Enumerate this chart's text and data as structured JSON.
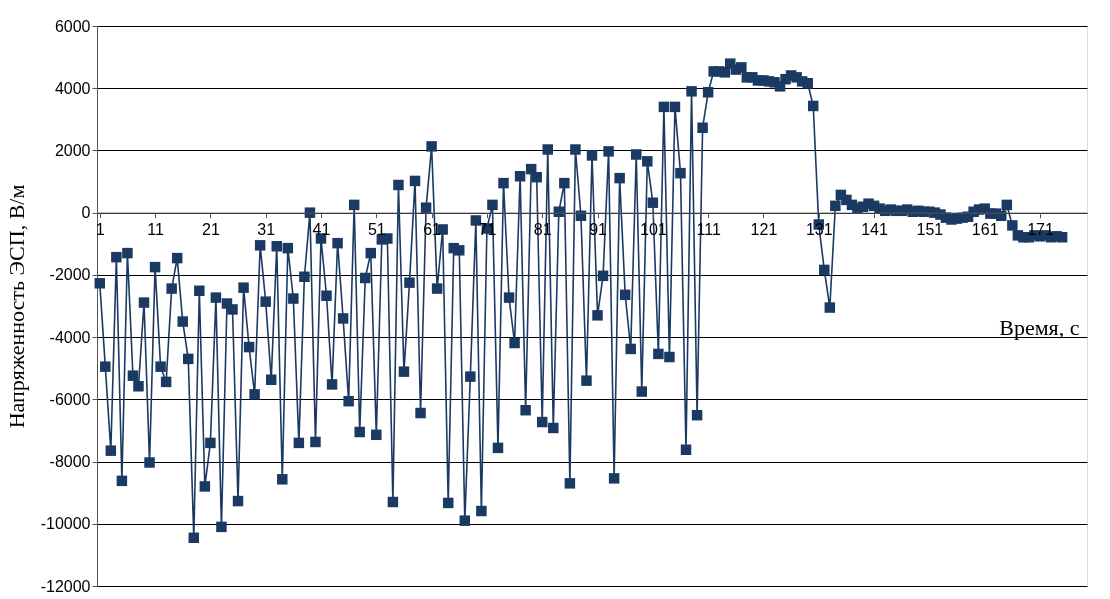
{
  "chart_data": {
    "type": "line",
    "xlabel": "Время, с",
    "ylabel": "Напряженность  ЭСП, В/м",
    "x": [
      1,
      2,
      3,
      4,
      5,
      6,
      7,
      8,
      9,
      10,
      11,
      12,
      13,
      14,
      15,
      16,
      17,
      18,
      19,
      20,
      21,
      22,
      23,
      24,
      25,
      26,
      27,
      28,
      29,
      30,
      31,
      32,
      33,
      34,
      35,
      36,
      37,
      38,
      39,
      40,
      41,
      42,
      43,
      44,
      45,
      46,
      47,
      48,
      49,
      50,
      51,
      52,
      53,
      54,
      55,
      56,
      57,
      58,
      59,
      60,
      61,
      62,
      63,
      64,
      65,
      66,
      67,
      68,
      69,
      70,
      71,
      72,
      73,
      74,
      75,
      76,
      77,
      78,
      79,
      80,
      81,
      82,
      83,
      84,
      85,
      86,
      87,
      88,
      89,
      90,
      91,
      92,
      93,
      94,
      95,
      96,
      97,
      98,
      99,
      100,
      101,
      102,
      103,
      104,
      105,
      106,
      107,
      108,
      109,
      110,
      111,
      112,
      113,
      114,
      115,
      116,
      117,
      118,
      119,
      120,
      121,
      122,
      123,
      124,
      125,
      126,
      127,
      128,
      129,
      130,
      131,
      132,
      133,
      134,
      135,
      136,
      137,
      138,
      139,
      140,
      141,
      142,
      143,
      144,
      145,
      146,
      147,
      148,
      149,
      150,
      151,
      152,
      153,
      154,
      155,
      156,
      157,
      158,
      159,
      160,
      161,
      162,
      163,
      164,
      165,
      166,
      167,
      168,
      169,
      170,
      171,
      172,
      173,
      174,
      175
    ],
    "series": [
      {
        "color": "#1b3a63",
        "values": [
          -2270,
          -4950,
          -7650,
          -1430,
          -8620,
          -1300,
          -5240,
          -5580,
          -2890,
          -8030,
          -1750,
          -4950,
          -5440,
          -2440,
          -1460,
          -3500,
          -4700,
          -10450,
          -2510,
          -8800,
          -7400,
          -2730,
          -10100,
          -2920,
          -3110,
          -9270,
          -2410,
          -4320,
          -5840,
          -1050,
          -2860,
          -5370,
          -1080,
          -8570,
          -1140,
          -2760,
          -7400,
          -2060,
          0,
          -7370,
          -830,
          -2670,
          -5520,
          -980,
          -3400,
          -6060,
          250,
          -7050,
          -2100,
          -1300,
          -7140,
          -860,
          -830,
          -9300,
          890,
          -5110,
          -2250,
          1020,
          -6440,
          160,
          2130,
          -2440,
          -540,
          -9330,
          -1140,
          -1210,
          -9900,
          -5270,
          -250,
          -9590,
          -510,
          250,
          -7560,
          950,
          -2730,
          -4190,
          1170,
          -6350,
          1400,
          1140,
          -6730,
          2030,
          -6920,
          30,
          950,
          -8700,
          2030,
          -100,
          -5400,
          1840,
          -3300,
          -2030,
          1970,
          -8540,
          1110,
          -2640,
          -4380,
          1870,
          -5750,
          1650,
          320,
          -4540,
          3400,
          -4640,
          3400,
          1270,
          -7620,
          3900,
          -6510,
          2730,
          3870,
          4540,
          4540,
          4510,
          4790,
          4600,
          4670,
          4350,
          4350,
          4250,
          4250,
          4220,
          4190,
          4060,
          4290,
          4410,
          4350,
          4220,
          4160,
          3430,
          -380,
          -1840,
          -3050,
          220,
          570,
          410,
          250,
          130,
          190,
          290,
          220,
          130,
          60,
          100,
          60,
          60,
          100,
          30,
          60,
          30,
          30,
          0,
          -60,
          -160,
          -220,
          -190,
          -160,
          -130,
          30,
          100,
          130,
          -30,
          -30,
          -100,
          250,
          -410,
          -730,
          -790,
          -790,
          -730,
          -760,
          -730,
          -790,
          -760,
          -790
        ]
      }
    ],
    "xlim": [
      0.5,
      179.5
    ],
    "xticks": [
      1,
      11,
      21,
      31,
      41,
      51,
      61,
      71,
      81,
      91,
      101,
      111,
      121,
      131,
      141,
      151,
      161,
      171
    ],
    "ylim": [
      -12000,
      6000
    ],
    "yticks": [
      -12000,
      -10000,
      -8000,
      -6000,
      -4000,
      -2000,
      0,
      2000,
      4000,
      6000
    ],
    "grid": "y",
    "marker": "square",
    "line_style": "solid"
  }
}
